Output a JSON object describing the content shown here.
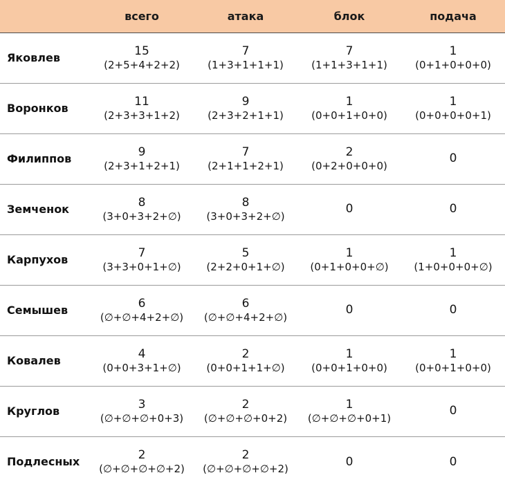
{
  "colors": {
    "header_bg": "#f8c9a4",
    "text": "#151515",
    "row_divider": "#9a9a9a",
    "header_divider": "#4a4a4a"
  },
  "chart_data": {
    "type": "table",
    "title": "",
    "columns": [
      "",
      "всего",
      "атака",
      "блок",
      "подача"
    ],
    "rows": [
      {
        "name": "Яковлев",
        "cells": [
          {
            "v": "15",
            "d": "(2+5+4+2+2)"
          },
          {
            "v": "7",
            "d": "(1+3+1+1+1)"
          },
          {
            "v": "7",
            "d": "(1+1+3+1+1)"
          },
          {
            "v": "1",
            "d": "(0+1+0+0+0)"
          }
        ]
      },
      {
        "name": "Воронков",
        "cells": [
          {
            "v": "11",
            "d": "(2+3+3+1+2)"
          },
          {
            "v": "9",
            "d": "(2+3+2+1+1)"
          },
          {
            "v": "1",
            "d": "(0+0+1+0+0)"
          },
          {
            "v": "1",
            "d": "(0+0+0+0+1)"
          }
        ]
      },
      {
        "name": "Филиппов",
        "cells": [
          {
            "v": "9",
            "d": "(2+3+1+2+1)"
          },
          {
            "v": "7",
            "d": "(2+1+1+2+1)"
          },
          {
            "v": "2",
            "d": "(0+2+0+0+0)"
          },
          {
            "v": "0",
            "d": ""
          }
        ]
      },
      {
        "name": "Земченок",
        "cells": [
          {
            "v": "8",
            "d": "(3+0+3+2+∅)"
          },
          {
            "v": "8",
            "d": "(3+0+3+2+∅)"
          },
          {
            "v": "0",
            "d": ""
          },
          {
            "v": "0",
            "d": ""
          }
        ]
      },
      {
        "name": "Карпухов",
        "cells": [
          {
            "v": "7",
            "d": "(3+3+0+1+∅)"
          },
          {
            "v": "5",
            "d": "(2+2+0+1+∅)"
          },
          {
            "v": "1",
            "d": "(0+1+0+0+∅)"
          },
          {
            "v": "1",
            "d": "(1+0+0+0+∅)"
          }
        ]
      },
      {
        "name": "Семышев",
        "cells": [
          {
            "v": "6",
            "d": "(∅+∅+4+2+∅)"
          },
          {
            "v": "6",
            "d": "(∅+∅+4+2+∅)"
          },
          {
            "v": "0",
            "d": ""
          },
          {
            "v": "0",
            "d": ""
          }
        ]
      },
      {
        "name": "Ковалев",
        "cells": [
          {
            "v": "4",
            "d": "(0+0+3+1+∅)"
          },
          {
            "v": "2",
            "d": "(0+0+1+1+∅)"
          },
          {
            "v": "1",
            "d": "(0+0+1+0+0)"
          },
          {
            "v": "1",
            "d": "(0+0+1+0+0)"
          }
        ]
      },
      {
        "name": "Круглов",
        "cells": [
          {
            "v": "3",
            "d": "(∅+∅+∅+0+3)"
          },
          {
            "v": "2",
            "d": "(∅+∅+∅+0+2)"
          },
          {
            "v": "1",
            "d": "(∅+∅+∅+0+1)"
          },
          {
            "v": "0",
            "d": ""
          }
        ]
      },
      {
        "name": "Подлесных",
        "cells": [
          {
            "v": "2",
            "d": "(∅+∅+∅+∅+2)"
          },
          {
            "v": "2",
            "d": "(∅+∅+∅+∅+2)"
          },
          {
            "v": "0",
            "d": ""
          },
          {
            "v": "0",
            "d": ""
          }
        ]
      }
    ]
  }
}
